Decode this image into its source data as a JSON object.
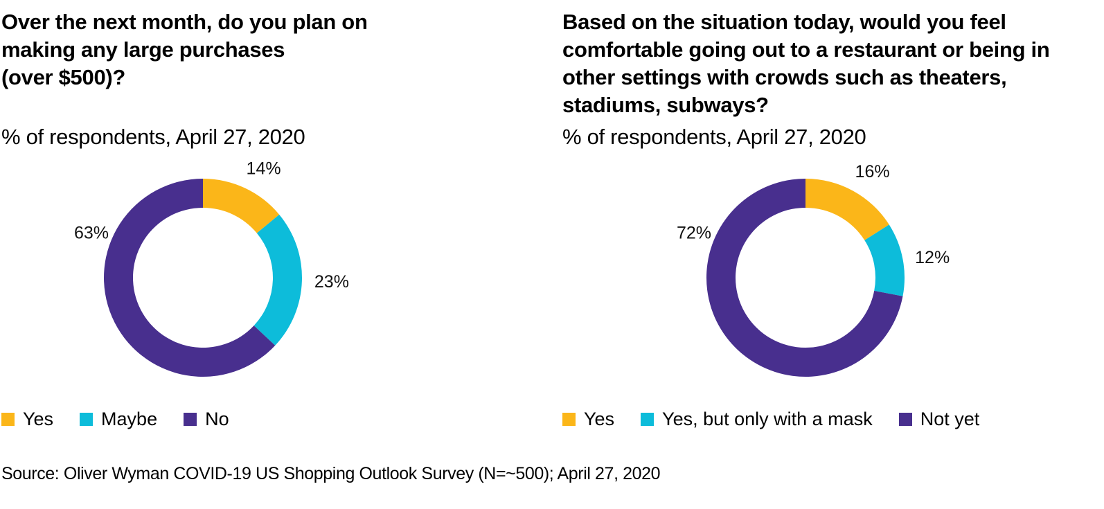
{
  "colors": {
    "yes": "#FBB619",
    "maybe": "#0DBCDA",
    "no": "#482F8E"
  },
  "source": "Source: Oliver Wyman COVID-19 US Shopping Outlook Survey (N=~500); April 27, 2020",
  "chart_data": [
    {
      "type": "pie",
      "subtype": "donut",
      "title": "Over the next month, do you plan on making any large purchases\n(over $500)?",
      "subtitle": "% of respondents, April 27, 2020",
      "categories": [
        "Yes",
        "Maybe",
        "No"
      ],
      "values": [
        14,
        23,
        63
      ],
      "value_labels": [
        "14%",
        "23%",
        "63%"
      ],
      "colors": [
        "#FBB619",
        "#0DBCDA",
        "#482F8E"
      ],
      "start_angle": "12 o'clock",
      "direction": "clockwise",
      "legend": {
        "placement": "bottom-left",
        "entries": [
          "Yes",
          "Maybe",
          "No"
        ]
      }
    },
    {
      "type": "pie",
      "subtype": "donut",
      "title": "Based on the situation today, would you feel comfortable going out to a restaurant or being in other settings with crowds such as theaters, stadiums, subways?",
      "subtitle": "% of respondents, April 27, 2020",
      "categories": [
        "Yes",
        "Yes, but only with a mask",
        "Not yet"
      ],
      "values": [
        16,
        12,
        72
      ],
      "value_labels": [
        "16%",
        "12%",
        "72%"
      ],
      "colors": [
        "#FBB619",
        "#0DBCDA",
        "#482F8E"
      ],
      "start_angle": "12 o'clock",
      "direction": "clockwise",
      "legend": {
        "placement": "bottom-left",
        "entries": [
          "Yes",
          "Yes, but only with a mask",
          "Not yet"
        ]
      }
    }
  ]
}
